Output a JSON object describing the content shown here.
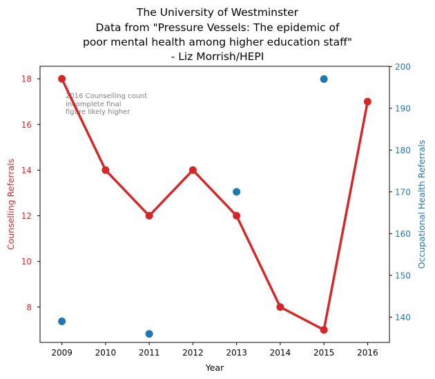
{
  "chart_data": {
    "type": "line",
    "title_lines": [
      "The University of Westminster",
      "Data from \"Pressure Vessels: The epidemic of",
      "poor mental health among higher education staff\"",
      "- Liz Morrish/HEPI"
    ],
    "xlabel": "Year",
    "ylabel_left": "Counselling Referrals",
    "ylabel_right": "Occupational Health Referrals",
    "x_ticks": [
      "2009",
      "2010",
      "2011",
      "2012",
      "2013",
      "2014",
      "2015",
      "2016"
    ],
    "xlim": [
      2008.5,
      2016.5
    ],
    "y_left_ticks": [
      "8",
      "10",
      "12",
      "14",
      "16",
      "18"
    ],
    "ylim_left": [
      6.45,
      18.55
    ],
    "y_right_ticks": [
      "140",
      "150",
      "160",
      "170",
      "180",
      "190",
      "200"
    ],
    "ylim_right": [
      133.95,
      200.05
    ],
    "annotation_lines": [
      "2016 Counselling count",
      "incomplete final",
      "figure likely higher"
    ],
    "series": [
      {
        "name": "Counselling Referrals",
        "axis": "left",
        "style": "line+markers",
        "color": "#d62728",
        "x": [
          2009,
          2010,
          2011,
          2012,
          2013,
          2014,
          2015,
          2016
        ],
        "values": [
          18,
          14,
          12,
          14,
          12,
          8,
          7,
          17
        ]
      },
      {
        "name": "Occupational Health Referrals",
        "axis": "right",
        "style": "markers",
        "color": "#1f77b4",
        "x": [
          2009,
          2011,
          2013,
          2015
        ],
        "values": [
          139,
          136,
          170,
          197
        ]
      }
    ],
    "grid": false
  }
}
